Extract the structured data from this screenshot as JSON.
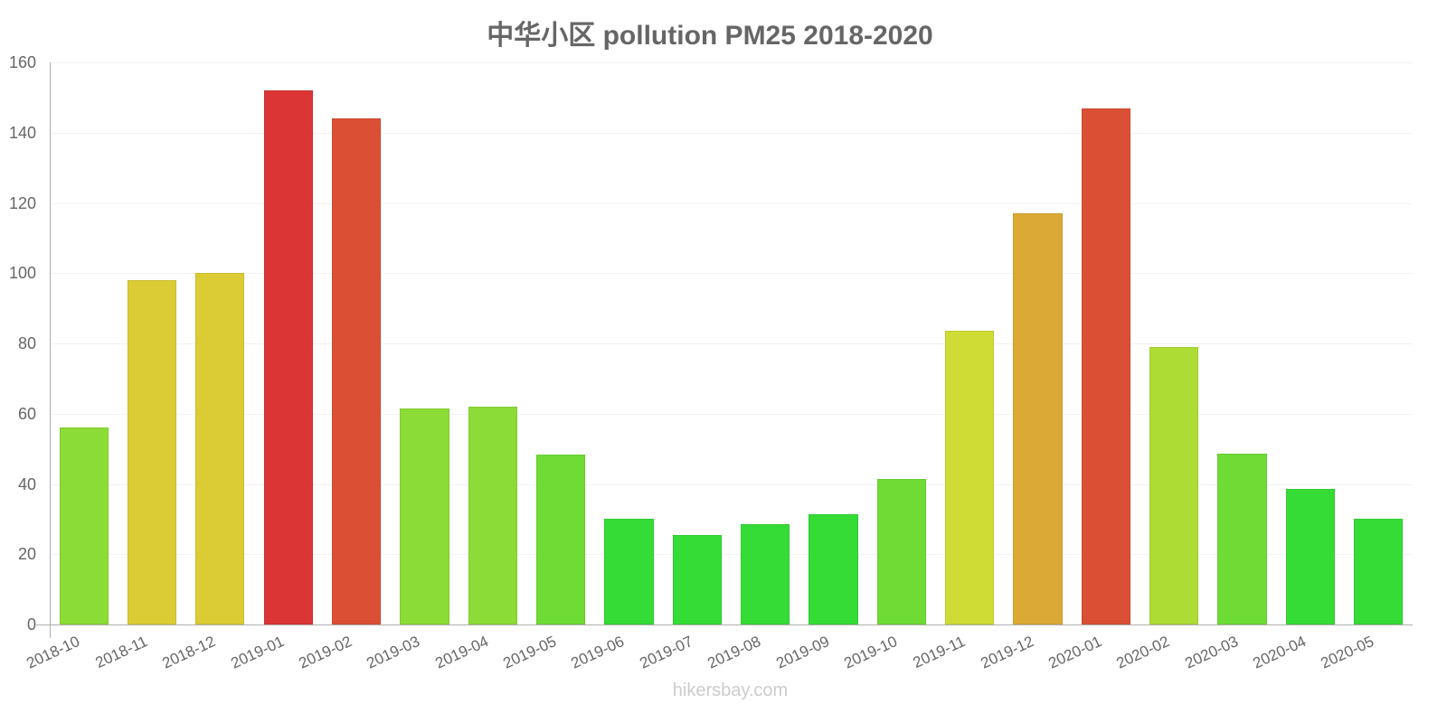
{
  "chart_data": {
    "type": "bar",
    "title": "中华小区 pollution PM25 2018-2020",
    "xlabel": "",
    "ylabel": "",
    "ylim": [
      0,
      160
    ],
    "yticks": [
      0,
      20,
      40,
      60,
      80,
      100,
      120,
      140,
      160
    ],
    "grid": true,
    "legend": null,
    "categories": [
      "2018-10",
      "2018-11",
      "2018-12",
      "2019-01",
      "2019-02",
      "2019-03",
      "2019-04",
      "2019-05",
      "2019-06",
      "2019-07",
      "2019-08",
      "2019-09",
      "2019-10",
      "2019-11",
      "2019-12",
      "2020-01",
      "2020-02",
      "2020-03",
      "2020-04",
      "2020-05"
    ],
    "values": [
      56,
      98,
      100,
      152,
      144,
      61.5,
      62,
      48.4,
      30,
      25.4,
      28.5,
      31.5,
      41.4,
      83.7,
      117,
      147,
      79,
      48.5,
      38.5,
      30
    ],
    "colors": [
      "#8bdc36",
      "#dbcb35",
      "#dbcb35",
      "#db3535",
      "#db5035",
      "#8bdc36",
      "#8bdc36",
      "#6edc35",
      "#35dc36",
      "#35dc36",
      "#35dc36",
      "#35dc36",
      "#6edc35",
      "#cfdc35",
      "#dba935",
      "#db5035",
      "#addc35",
      "#6edc35",
      "#35dc36",
      "#35dc36"
    ]
  },
  "footer": {
    "watermark": "hikersbay.com"
  }
}
